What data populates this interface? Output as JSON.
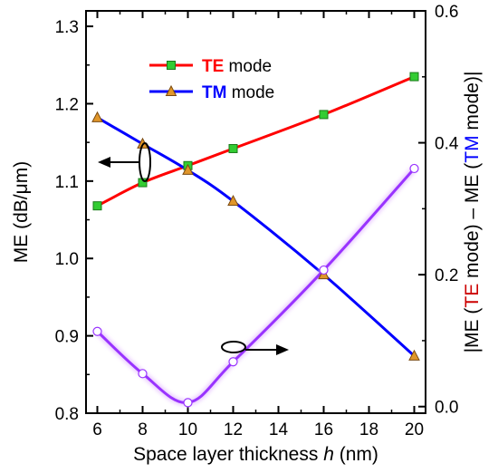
{
  "chart_data": {
    "type": "line",
    "x": [
      6,
      8,
      10,
      12,
      16,
      20
    ],
    "xlabel_prefix": "Space layer thickness ",
    "xlabel_var": "h",
    "xlabel_suffix": " (nm)",
    "xlim": [
      5.5,
      20.5
    ],
    "xticks": [
      6,
      8,
      10,
      12,
      14,
      16,
      18,
      20
    ],
    "ylabel_left": "ME (dB/μm)",
    "ylim_left": [
      0.8,
      1.32
    ],
    "yticks_left": [
      "0.8",
      "0.9",
      "1.0",
      "1.1",
      "1.2",
      "1.3"
    ],
    "ylabel_right_parts": [
      "|ME (",
      "TE",
      " mode) – ME (",
      "TM",
      " mode)|"
    ],
    "ylim_right": [
      -0.01,
      0.6
    ],
    "yticks_right": [
      "0.0",
      "0.2",
      "0.4",
      "0.6"
    ],
    "series": [
      {
        "name": "TE mode",
        "legend_bold": "TE",
        "legend_rest": " mode",
        "axis": "left",
        "color": "#ff0000",
        "marker": "square",
        "marker_color": "#33cc33",
        "values": [
          1.068,
          1.098,
          1.12,
          1.142,
          1.186,
          1.235
        ]
      },
      {
        "name": "TM mode",
        "legend_bold": "TM",
        "legend_rest": " mode",
        "axis": "left",
        "color": "#0000ff",
        "marker": "triangle",
        "marker_color": "#e0962a",
        "values": [
          1.182,
          1.148,
          1.114,
          1.074,
          0.979,
          0.874
        ]
      },
      {
        "name": "",
        "axis": "right",
        "color": "#9933ff",
        "marker": "circle",
        "marker_color": "#ffffff",
        "values": [
          0.114,
          0.05,
          0.006,
          0.068,
          0.207,
          0.361
        ]
      }
    ],
    "legend_position": "top-center",
    "grid": false
  }
}
